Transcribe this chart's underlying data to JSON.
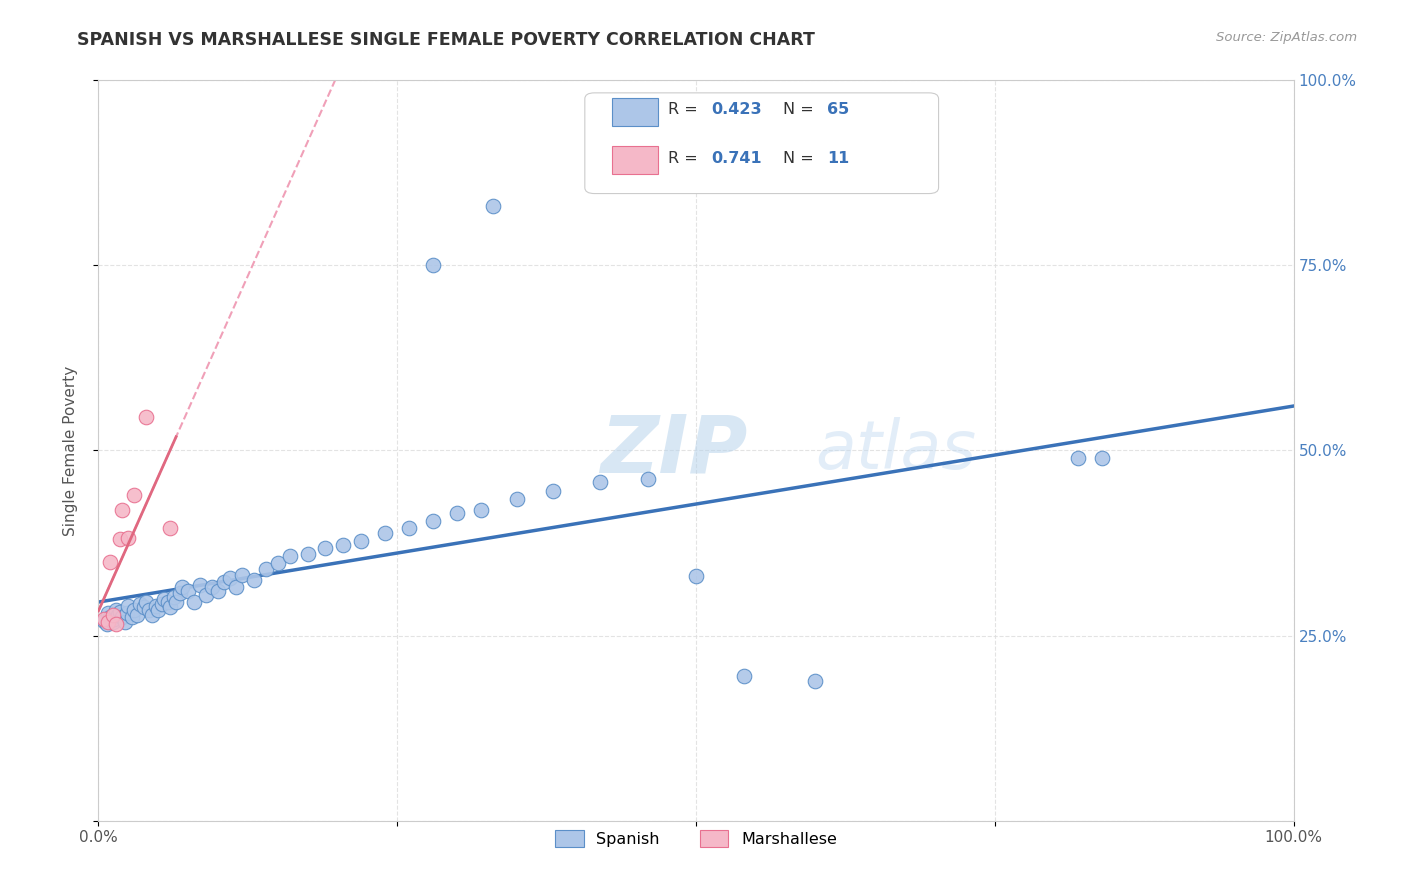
{
  "title": "SPANISH VS MARSHALLESE SINGLE FEMALE POVERTY CORRELATION CHART",
  "source": "Source: ZipAtlas.com",
  "ylabel": "Single Female Poverty",
  "xlim": [
    0.0,
    1.0
  ],
  "ylim": [
    0.0,
    1.0
  ],
  "watermark_zip": "ZIP",
  "watermark_atlas": "atlas",
  "legend_r_spanish": "0.423",
  "legend_n_spanish": "65",
  "legend_r_marshallese": "0.741",
  "legend_n_marshallese": "11",
  "spanish_fill": "#adc6e8",
  "spanish_edge": "#5b8fc8",
  "marshallese_fill": "#f5b8c8",
  "marshallese_edge": "#e87090",
  "spanish_line_color": "#3a72b8",
  "marshallese_line_color": "#e06880",
  "marshallese_dash_color": "#f0a0b8",
  "grid_color": "#dddddd",
  "right_label_color": "#4a80c0",
  "spanish_x": [
    0.005,
    0.007,
    0.008,
    0.01,
    0.012,
    0.013,
    0.015,
    0.016,
    0.018,
    0.02,
    0.022,
    0.024,
    0.025,
    0.028,
    0.03,
    0.032,
    0.035,
    0.038,
    0.04,
    0.042,
    0.045,
    0.048,
    0.05,
    0.053,
    0.055,
    0.058,
    0.06,
    0.063,
    0.065,
    0.068,
    0.07,
    0.075,
    0.08,
    0.085,
    0.09,
    0.095,
    0.1,
    0.105,
    0.11,
    0.115,
    0.12,
    0.13,
    0.14,
    0.15,
    0.16,
    0.175,
    0.19,
    0.205,
    0.22,
    0.24,
    0.26,
    0.28,
    0.3,
    0.32,
    0.35,
    0.38,
    0.42,
    0.46,
    0.5,
    0.54,
    0.6,
    0.82,
    0.84,
    0.28,
    0.33
  ],
  "spanish_y": [
    0.27,
    0.265,
    0.28,
    0.275,
    0.268,
    0.272,
    0.285,
    0.278,
    0.282,
    0.275,
    0.268,
    0.28,
    0.29,
    0.275,
    0.285,
    0.278,
    0.292,
    0.288,
    0.295,
    0.285,
    0.278,
    0.29,
    0.285,
    0.292,
    0.3,
    0.295,
    0.288,
    0.302,
    0.295,
    0.308,
    0.315,
    0.31,
    0.295,
    0.318,
    0.305,
    0.315,
    0.31,
    0.322,
    0.328,
    0.315,
    0.332,
    0.325,
    0.34,
    0.348,
    0.358,
    0.36,
    0.368,
    0.372,
    0.378,
    0.388,
    0.395,
    0.405,
    0.415,
    0.42,
    0.435,
    0.445,
    0.458,
    0.462,
    0.33,
    0.195,
    0.188,
    0.49,
    0.49,
    0.75,
    0.83
  ],
  "marshallese_x": [
    0.005,
    0.008,
    0.01,
    0.012,
    0.015,
    0.018,
    0.02,
    0.025,
    0.03,
    0.04,
    0.06
  ],
  "marshallese_y": [
    0.272,
    0.268,
    0.35,
    0.278,
    0.265,
    0.38,
    0.42,
    0.382,
    0.44,
    0.545,
    0.395
  ]
}
